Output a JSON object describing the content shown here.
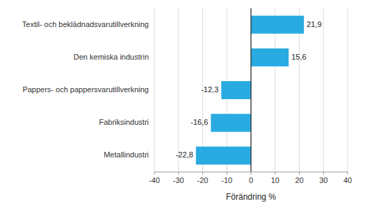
{
  "chart_data": {
    "type": "bar",
    "orientation": "horizontal",
    "categories": [
      "Metallindustri",
      "Fabriksindustri",
      "Pappers- och pappersvarutillverkning",
      "Den kemiska industrin",
      "Textil- och beklädnadsvarutillverkning"
    ],
    "values": [
      -22.8,
      -16.6,
      -12.3,
      15.6,
      21.9
    ],
    "value_labels": [
      "-22,8",
      "-16,6",
      "-12,3",
      "15,6",
      "21,9"
    ],
    "data_labels": true,
    "color": "#29ABE2",
    "xlim": [
      -40,
      40
    ],
    "xticks": [
      -40,
      -30,
      -20,
      -10,
      0,
      10,
      20,
      30,
      40
    ],
    "xlabel": "Förändring %",
    "grid": true
  }
}
